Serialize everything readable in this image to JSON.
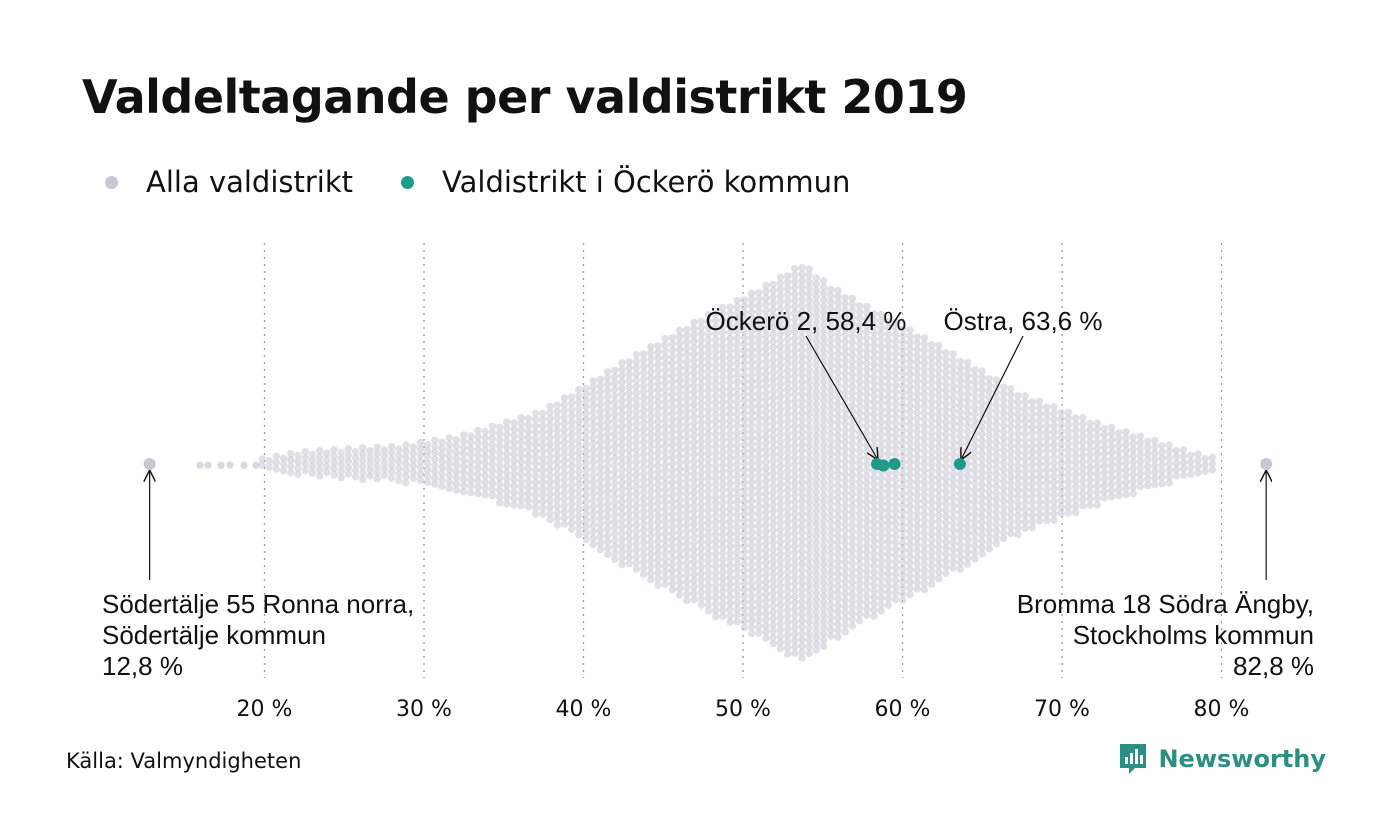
{
  "title": "Valdeltagande per valdistrikt 2019",
  "legend": {
    "all_label": "Alla valdistrikt",
    "highlight_label": "Valdistrikt i Öckerö kommun"
  },
  "colors": {
    "all": "#c8c7d3",
    "highlight": "#1e9a8a",
    "grid": "#9a9a9a",
    "brand": "#2d8f82"
  },
  "source": "Källa: Valmyndigheten",
  "brand": {
    "name": "Newsworthy",
    "icon": "bar-chart-logo-icon"
  },
  "chart_data": {
    "type": "scatter",
    "subtype": "beeswarm",
    "x_ticks": [
      20,
      30,
      40,
      50,
      60,
      70,
      80
    ],
    "x_tick_labels": [
      "20 %",
      "30 %",
      "40 %",
      "50 %",
      "60 %",
      "70 %",
      "80 %"
    ],
    "xlim": [
      10,
      86
    ],
    "grid": "vertical dotted",
    "highlight_series": {
      "name": "Valdistrikt i Öckerö kommun",
      "values": [
        58.4,
        58.8,
        59.5,
        63.6
      ]
    },
    "annotations": [
      {
        "label": "Öckerö 2, 58,4 %",
        "value": 58.4
      },
      {
        "label": "Östra, 63,6 %",
        "value": 63.6
      },
      {
        "lines": [
          "Södertälje 55 Ronna norra,",
          "Södertälje kommun",
          "12,8 %"
        ],
        "value": 12.8
      },
      {
        "lines": [
          "Bromma 18 Södra Ängby,",
          "Stockholms kommun",
          "82,8 %"
        ],
        "value": 82.8
      }
    ]
  }
}
